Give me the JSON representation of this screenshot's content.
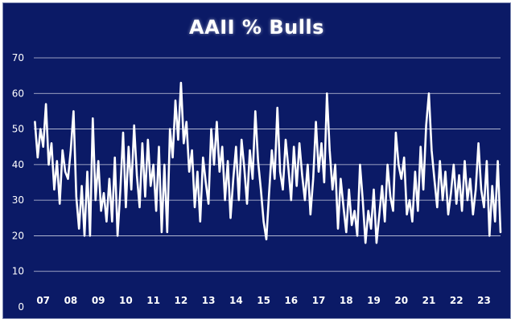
{
  "chart_data": {
    "type": "line",
    "title": "AAII % Bulls",
    "xlabel": "",
    "ylabel": "",
    "ylim": [
      0,
      70
    ],
    "yticks": [
      0,
      10,
      20,
      30,
      40,
      50,
      60,
      70
    ],
    "grid": true,
    "legend": "none",
    "x_ticks": [
      "07",
      "08",
      "09",
      "10",
      "11",
      "12",
      "13",
      "14",
      "15",
      "16",
      "17",
      "18",
      "19",
      "20",
      "21",
      "22",
      "23"
    ],
    "x_range": [
      2006.75,
      2023.75
    ],
    "series": [
      {
        "values": [
          [
            2006.85,
            52
          ],
          [
            2006.95,
            42
          ],
          [
            2007.05,
            50
          ],
          [
            2007.15,
            45
          ],
          [
            2007.25,
            57
          ],
          [
            2007.35,
            40
          ],
          [
            2007.45,
            46
          ],
          [
            2007.55,
            33
          ],
          [
            2007.65,
            41
          ],
          [
            2007.75,
            29
          ],
          [
            2007.85,
            44
          ],
          [
            2007.95,
            38
          ],
          [
            2008.05,
            36
          ],
          [
            2008.15,
            44
          ],
          [
            2008.25,
            55
          ],
          [
            2008.35,
            31
          ],
          [
            2008.45,
            22
          ],
          [
            2008.55,
            34
          ],
          [
            2008.65,
            20
          ],
          [
            2008.75,
            38
          ],
          [
            2008.85,
            20
          ],
          [
            2008.95,
            53
          ],
          [
            2009.05,
            30
          ],
          [
            2009.15,
            41
          ],
          [
            2009.25,
            27
          ],
          [
            2009.35,
            32
          ],
          [
            2009.45,
            24
          ],
          [
            2009.55,
            36
          ],
          [
            2009.65,
            24
          ],
          [
            2009.75,
            42
          ],
          [
            2009.85,
            20
          ],
          [
            2009.95,
            33
          ],
          [
            2010.05,
            49
          ],
          [
            2010.15,
            28
          ],
          [
            2010.25,
            45
          ],
          [
            2010.35,
            33
          ],
          [
            2010.45,
            51
          ],
          [
            2010.55,
            37
          ],
          [
            2010.65,
            28
          ],
          [
            2010.75,
            46
          ],
          [
            2010.85,
            31
          ],
          [
            2010.95,
            47
          ],
          [
            2011.05,
            34
          ],
          [
            2011.15,
            40
          ],
          [
            2011.25,
            27
          ],
          [
            2011.35,
            45
          ],
          [
            2011.45,
            21
          ],
          [
            2011.55,
            40
          ],
          [
            2011.65,
            21
          ],
          [
            2011.75,
            50
          ],
          [
            2011.85,
            42
          ],
          [
            2011.95,
            58
          ],
          [
            2012.05,
            47
          ],
          [
            2012.15,
            63
          ],
          [
            2012.25,
            46
          ],
          [
            2012.35,
            52
          ],
          [
            2012.45,
            38
          ],
          [
            2012.55,
            44
          ],
          [
            2012.65,
            28
          ],
          [
            2012.75,
            38
          ],
          [
            2012.85,
            24
          ],
          [
            2012.95,
            42
          ],
          [
            2013.05,
            35
          ],
          [
            2013.15,
            29
          ],
          [
            2013.25,
            50
          ],
          [
            2013.35,
            40
          ],
          [
            2013.45,
            52
          ],
          [
            2013.55,
            38
          ],
          [
            2013.65,
            45
          ],
          [
            2013.75,
            30
          ],
          [
            2013.85,
            41
          ],
          [
            2013.95,
            25
          ],
          [
            2014.05,
            36
          ],
          [
            2014.15,
            45
          ],
          [
            2014.25,
            30
          ],
          [
            2014.35,
            47
          ],
          [
            2014.45,
            39
          ],
          [
            2014.55,
            29
          ],
          [
            2014.65,
            44
          ],
          [
            2014.75,
            36
          ],
          [
            2014.85,
            55
          ],
          [
            2014.95,
            41
          ],
          [
            2015.05,
            33
          ],
          [
            2015.15,
            24
          ],
          [
            2015.25,
            19
          ],
          [
            2015.35,
            32
          ],
          [
            2015.45,
            44
          ],
          [
            2015.55,
            36
          ],
          [
            2015.65,
            56
          ],
          [
            2015.75,
            38
          ],
          [
            2015.85,
            33
          ],
          [
            2015.95,
            47
          ],
          [
            2016.05,
            39
          ],
          [
            2016.15,
            30
          ],
          [
            2016.25,
            45
          ],
          [
            2016.35,
            34
          ],
          [
            2016.45,
            46
          ],
          [
            2016.55,
            37
          ],
          [
            2016.65,
            30
          ],
          [
            2016.75,
            40
          ],
          [
            2016.85,
            26
          ],
          [
            2016.95,
            36
          ],
          [
            2017.05,
            52
          ],
          [
            2017.15,
            38
          ],
          [
            2017.25,
            46
          ],
          [
            2017.35,
            35
          ],
          [
            2017.45,
            60
          ],
          [
            2017.55,
            44
          ],
          [
            2017.65,
            33
          ],
          [
            2017.75,
            40
          ],
          [
            2017.85,
            22
          ],
          [
            2017.95,
            36
          ],
          [
            2018.05,
            28
          ],
          [
            2018.15,
            21
          ],
          [
            2018.25,
            33
          ],
          [
            2018.35,
            23
          ],
          [
            2018.45,
            27
          ],
          [
            2018.55,
            20
          ],
          [
            2018.65,
            40
          ],
          [
            2018.75,
            30
          ],
          [
            2018.85,
            18
          ],
          [
            2018.95,
            27
          ],
          [
            2019.05,
            22
          ],
          [
            2019.15,
            33
          ],
          [
            2019.25,
            18
          ],
          [
            2019.35,
            26
          ],
          [
            2019.45,
            34
          ],
          [
            2019.55,
            24
          ],
          [
            2019.65,
            40
          ],
          [
            2019.75,
            31
          ],
          [
            2019.85,
            27
          ],
          [
            2019.95,
            49
          ],
          [
            2020.05,
            40
          ],
          [
            2020.15,
            36
          ],
          [
            2020.25,
            42
          ],
          [
            2020.35,
            26
          ],
          [
            2020.45,
            30
          ],
          [
            2020.55,
            24
          ],
          [
            2020.65,
            38
          ],
          [
            2020.75,
            27
          ],
          [
            2020.85,
            45
          ],
          [
            2020.95,
            33
          ],
          [
            2021.05,
            51
          ],
          [
            2021.15,
            60
          ],
          [
            2021.25,
            44
          ],
          [
            2021.35,
            36
          ],
          [
            2021.45,
            28
          ],
          [
            2021.55,
            41
          ],
          [
            2021.65,
            30
          ],
          [
            2021.75,
            38
          ],
          [
            2021.85,
            26
          ],
          [
            2021.95,
            32
          ],
          [
            2022.05,
            40
          ],
          [
            2022.15,
            29
          ],
          [
            2022.25,
            37
          ],
          [
            2022.35,
            27
          ],
          [
            2022.45,
            41
          ],
          [
            2022.55,
            30
          ],
          [
            2022.65,
            36
          ],
          [
            2022.75,
            26
          ],
          [
            2022.85,
            33
          ],
          [
            2022.95,
            46
          ],
          [
            2023.05,
            33
          ],
          [
            2023.15,
            28
          ],
          [
            2023.25,
            41
          ],
          [
            2023.35,
            20
          ],
          [
            2023.45,
            34
          ],
          [
            2023.55,
            24
          ],
          [
            2023.65,
            41
          ],
          [
            2023.75,
            21
          ]
        ]
      }
    ]
  },
  "colors": {
    "background": "#0b1a66",
    "line": "#ffffff",
    "grid": "#c9cce0",
    "text": "#ffffff"
  }
}
